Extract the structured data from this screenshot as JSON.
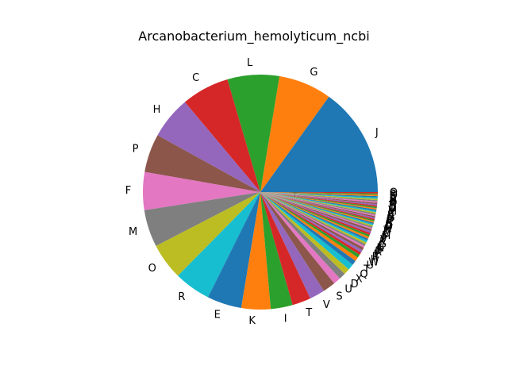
{
  "chart_data": {
    "type": "pie",
    "title": "Arcanobacterium_hemolyticum_ncbi",
    "start_angle_deg": 0,
    "direction": "counterclockwise",
    "legend": "none",
    "slices": [
      {
        "label": "J",
        "value": 165
      },
      {
        "label": "G",
        "value": 80
      },
      {
        "label": "L",
        "value": 78
      },
      {
        "label": "C",
        "value": 72
      },
      {
        "label": "H",
        "value": 64
      },
      {
        "label": "P",
        "value": 58
      },
      {
        "label": "F",
        "value": 57
      },
      {
        "label": "M",
        "value": 56
      },
      {
        "label": "O",
        "value": 55
      },
      {
        "label": "R",
        "value": 55
      },
      {
        "label": "E",
        "value": 52
      },
      {
        "label": "K",
        "value": 44
      },
      {
        "label": "I",
        "value": 33
      },
      {
        "label": "T",
        "value": 28
      },
      {
        "label": "V",
        "value": 23
      },
      {
        "label": "S",
        "value": 19
      },
      {
        "label": "U",
        "value": 11
      },
      {
        "label": "D",
        "value": 10
      },
      {
        "label": "X",
        "value": 9
      },
      {
        "label": "Q",
        "value": 9
      },
      {
        "label": "T",
        "value": 7
      },
      {
        "label": "U",
        "value": 6
      },
      {
        "label": "W",
        "value": 5
      },
      {
        "label": "H",
        "value": 4
      },
      {
        "label": "P",
        "value": 4
      },
      {
        "label": "E",
        "value": 4
      },
      {
        "label": "R",
        "value": 3
      },
      {
        "label": "S",
        "value": 3
      },
      {
        "label": "N",
        "value": 3
      },
      {
        "label": "C",
        "value": 3
      },
      {
        "label": "G",
        "value": 3
      },
      {
        "label": "K",
        "value": 3
      },
      {
        "label": "V",
        "value": 3
      },
      {
        "label": "F",
        "value": 3
      },
      {
        "label": "M",
        "value": 3
      },
      {
        "label": "O",
        "value": 3
      },
      {
        "label": "I",
        "value": 2
      },
      {
        "label": "T",
        "value": 2
      },
      {
        "label": "H",
        "value": 2
      },
      {
        "label": "Q",
        "value": 2
      },
      {
        "label": "D",
        "value": 2
      },
      {
        "label": "L",
        "value": 2
      },
      {
        "label": "E",
        "value": 2
      },
      {
        "label": "R",
        "value": 2
      },
      {
        "label": "P",
        "value": 2
      },
      {
        "label": "U",
        "value": 2
      },
      {
        "label": "G",
        "value": 2
      },
      {
        "label": "K",
        "value": 2
      },
      {
        "label": "S",
        "value": 2
      },
      {
        "label": "C",
        "value": 2
      },
      {
        "label": "M",
        "value": 2
      },
      {
        "label": "V",
        "value": 2
      },
      {
        "label": "O",
        "value": 2
      },
      {
        "label": "D",
        "value": 2
      },
      {
        "label": "T",
        "value": 2
      },
      {
        "label": "R",
        "value": 2
      },
      {
        "label": "Q",
        "value": 2
      },
      {
        "label": "H",
        "value": 2
      },
      {
        "label": "S",
        "value": 2
      },
      {
        "label": "P",
        "value": 2
      },
      {
        "label": "E",
        "value": 2
      },
      {
        "label": "O",
        "value": 2
      },
      {
        "label": "R",
        "value": 2
      },
      {
        "label": "Q",
        "value": 2
      }
    ],
    "colors": [
      "#1f77b4",
      "#ff7f0e",
      "#2ca02c",
      "#d62728",
      "#9467bd",
      "#8c564b",
      "#e377c2",
      "#7f7f7f",
      "#bcbd22",
      "#17becf"
    ]
  }
}
